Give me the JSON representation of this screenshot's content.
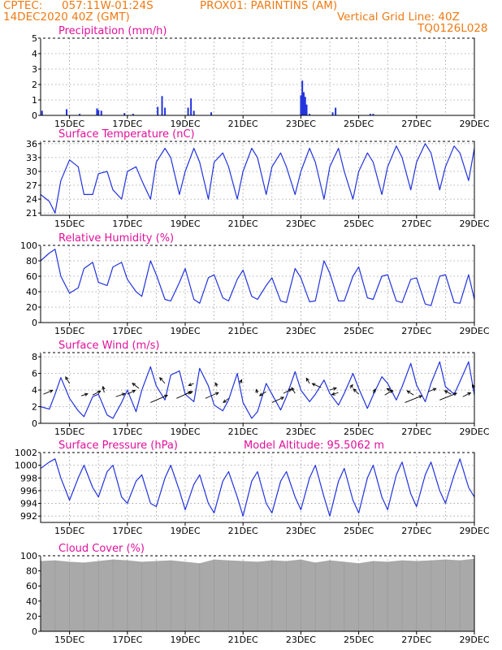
{
  "header": {
    "source": "CPTEC:",
    "coords": "057:11W-01:24S",
    "station": "PROX01: PARINTINS (AM)",
    "date": "14DEC2020 40Z (GMT)",
    "grid_note": "Vertical Grid Line: 40Z",
    "code": "TQ0126L028"
  },
  "colors": {
    "header": "#f07a14",
    "title": "#e0109a",
    "line": "#2233dd",
    "cloud": "#a9a9a9",
    "grid": "#9a9a9a"
  },
  "x_tick_labels": [
    "15DEC",
    "17DEC",
    "19DEC",
    "21DEC",
    "23DEC",
    "25DEC",
    "27DEC",
    "29DEC"
  ],
  "chart_data": [
    {
      "type": "bar",
      "title": "Precipitation (mm/h)",
      "ylim": [
        0,
        5
      ],
      "yticks": [
        0,
        1,
        2,
        3,
        4,
        5
      ],
      "x_range_days": [
        14.0,
        29.0
      ],
      "x_days": [
        14.05,
        14.9,
        15.35,
        15.95,
        16.0,
        16.1,
        16.9,
        17.2,
        18.05,
        18.2,
        18.3,
        19.1,
        19.2,
        19.3,
        19.9,
        23.0,
        23.05,
        23.1,
        23.15,
        23.2,
        23.3,
        24.1,
        24.2,
        25.4,
        25.5
      ],
      "values": [
        0.3,
        0.4,
        0.1,
        0.45,
        0.35,
        0.3,
        0.15,
        0.1,
        0.55,
        1.25,
        0.5,
        0.5,
        1.1,
        0.3,
        0.2,
        1.3,
        2.25,
        1.5,
        1.2,
        0.7,
        0.1,
        0.2,
        0.5,
        0.1,
        0.1
      ]
    },
    {
      "type": "line",
      "title": "Surface Temperature (nC)",
      "ylim": [
        20.5,
        36.5
      ],
      "yticks": [
        21,
        24,
        27,
        30,
        33,
        36
      ],
      "x_days": [
        14.0,
        14.3,
        14.5,
        14.7,
        15.0,
        15.3,
        15.5,
        15.8,
        16.0,
        16.3,
        16.5,
        16.8,
        17.0,
        17.3,
        17.5,
        17.8,
        18.0,
        18.3,
        18.5,
        18.8,
        19.0,
        19.3,
        19.5,
        19.8,
        20.0,
        20.3,
        20.5,
        20.8,
        21.0,
        21.3,
        21.5,
        21.8,
        22.0,
        22.3,
        22.5,
        22.8,
        23.0,
        23.3,
        23.5,
        23.8,
        24.0,
        24.3,
        24.5,
        24.8,
        25.0,
        25.3,
        25.5,
        25.8,
        26.0,
        26.3,
        26.5,
        26.8,
        27.0,
        27.3,
        27.5,
        27.8,
        28.0,
        28.3,
        28.5,
        28.8,
        29.0
      ],
      "values": [
        25,
        23.5,
        21,
        28,
        32.5,
        31,
        25,
        25,
        29.5,
        30,
        26,
        24,
        30,
        31,
        28,
        24,
        32,
        35,
        33,
        25,
        30,
        35,
        32,
        24,
        32,
        34,
        31,
        24,
        30,
        35,
        33,
        25,
        31,
        34,
        31,
        25,
        30,
        35,
        32,
        24,
        31,
        35,
        30,
        24,
        30,
        34,
        32,
        25,
        31,
        35.5,
        33,
        26,
        32,
        36,
        34,
        26,
        31,
        35.5,
        34,
        28,
        35
      ]
    },
    {
      "type": "line",
      "title": "Relative Humidity (%)",
      "ylim": [
        0,
        100
      ],
      "yticks": [
        0,
        20,
        40,
        60,
        80,
        100
      ],
      "x_days": [
        14.0,
        14.3,
        14.5,
        14.7,
        15.0,
        15.3,
        15.5,
        15.8,
        16.0,
        16.3,
        16.5,
        16.8,
        17.0,
        17.3,
        17.5,
        17.8,
        18.0,
        18.3,
        18.5,
        18.8,
        19.0,
        19.3,
        19.5,
        19.8,
        20.0,
        20.3,
        20.5,
        20.8,
        21.0,
        21.3,
        21.5,
        21.8,
        22.0,
        22.3,
        22.5,
        22.8,
        23.0,
        23.3,
        23.5,
        23.8,
        24.0,
        24.3,
        24.5,
        24.8,
        25.0,
        25.3,
        25.5,
        25.8,
        26.0,
        26.3,
        26.5,
        26.8,
        27.0,
        27.3,
        27.5,
        27.8,
        28.0,
        28.3,
        28.5,
        28.8,
        29.0
      ],
      "values": [
        80,
        90,
        95,
        60,
        38,
        45,
        70,
        78,
        52,
        48,
        72,
        78,
        56,
        40,
        34,
        80,
        62,
        30,
        28,
        52,
        70,
        30,
        25,
        58,
        62,
        32,
        28,
        56,
        68,
        34,
        30,
        48,
        58,
        28,
        26,
        70,
        58,
        27,
        28,
        80,
        64,
        28,
        28,
        60,
        72,
        32,
        30,
        60,
        62,
        28,
        26,
        56,
        58,
        24,
        22,
        60,
        62,
        26,
        25,
        62,
        30
      ]
    },
    {
      "type": "line",
      "title": "Surface Wind (m/s)",
      "ylim": [
        0,
        8.5
      ],
      "yticks": [
        0,
        2,
        4,
        6,
        8
      ],
      "x_days": [
        14.0,
        14.3,
        14.5,
        14.7,
        15.0,
        15.3,
        15.5,
        15.8,
        16.0,
        16.3,
        16.5,
        16.8,
        17.0,
        17.3,
        17.5,
        17.8,
        18.0,
        18.3,
        18.5,
        18.8,
        19.0,
        19.3,
        19.5,
        19.8,
        20.0,
        20.3,
        20.5,
        20.8,
        21.0,
        21.3,
        21.5,
        21.8,
        22.0,
        22.3,
        22.5,
        22.8,
        23.0,
        23.3,
        23.5,
        23.8,
        24.0,
        24.3,
        24.5,
        24.8,
        25.0,
        25.3,
        25.5,
        25.8,
        26.0,
        26.3,
        26.5,
        26.8,
        27.0,
        27.3,
        27.5,
        27.8,
        28.0,
        28.3,
        28.5,
        28.8,
        29.0
      ],
      "values": [
        2,
        1.7,
        3.5,
        5.5,
        3,
        1.5,
        0.8,
        3.2,
        3.5,
        1,
        0.6,
        2.5,
        4,
        1.4,
        4,
        6.8,
        4.5,
        2.8,
        5.8,
        6.3,
        3.5,
        2.6,
        6.6,
        4.5,
        2.2,
        1.5,
        2.8,
        6,
        2.5,
        0.6,
        1.4,
        4.8,
        3.5,
        1.6,
        3.2,
        6.2,
        4,
        2.6,
        3.5,
        5.2,
        3.6,
        2.2,
        3.6,
        6,
        4.2,
        1.8,
        3.4,
        5.6,
        4.8,
        2.8,
        4.4,
        7.2,
        4.6,
        2.6,
        4.8,
        7.4,
        4.4,
        3.5,
        5,
        7.4,
        3.4
      ],
      "arrows": [
        {
          "day": 14.1,
          "speed": 3.5,
          "u": 3.5,
          "v": 1.5
        },
        {
          "day": 15.0,
          "speed": 4.8,
          "u": -1.5,
          "v": 2.5
        },
        {
          "day": 15.4,
          "speed": 3.3,
          "u": 2.5,
          "v": 0.8
        },
        {
          "day": 15.8,
          "speed": 3.4,
          "u": 3,
          "v": 1.5
        },
        {
          "day": 16.2,
          "speed": 3.7,
          "u": -0.5,
          "v": 2.3
        },
        {
          "day": 16.6,
          "speed": 3.2,
          "u": 3.5,
          "v": 1.2
        },
        {
          "day": 17.0,
          "speed": 3.5,
          "u": 3,
          "v": 1.5
        },
        {
          "day": 17.4,
          "speed": 4.2,
          "u": -2.5,
          "v": 2
        },
        {
          "day": 17.8,
          "speed": 2.5,
          "u": 6.5,
          "v": 2.8
        },
        {
          "day": 18.3,
          "speed": 4.8,
          "u": -2,
          "v": 2.2
        },
        {
          "day": 18.7,
          "speed": 3,
          "u": 5.5,
          "v": 2.5
        },
        {
          "day": 19.0,
          "speed": 3.5,
          "u": 2.8,
          "v": 1
        },
        {
          "day": 19.3,
          "speed": 4.8,
          "u": -2,
          "v": -0.8
        },
        {
          "day": 19.7,
          "speed": 3,
          "u": 5,
          "v": 2.2
        },
        {
          "day": 20.1,
          "speed": 4.4,
          "u": -0.6,
          "v": 1.5
        },
        {
          "day": 20.5,
          "speed": 3,
          "u": -2,
          "v": -1.6
        },
        {
          "day": 20.9,
          "speed": 4.8,
          "u": 0.6,
          "v": 1.4
        },
        {
          "day": 21.5,
          "speed": 3.6,
          "u": -0.5,
          "v": 1.5
        },
        {
          "day": 21.8,
          "speed": 3.8,
          "u": -2.5,
          "v": -1.5
        },
        {
          "day": 22.0,
          "speed": 2.5,
          "u": 4.5,
          "v": 2
        },
        {
          "day": 22.4,
          "speed": 3.6,
          "u": 3,
          "v": 1.6
        },
        {
          "day": 22.8,
          "speed": 3.6,
          "u": -1.3,
          "v": 2.2
        },
        {
          "day": 23.3,
          "speed": 4.8,
          "u": -1.2,
          "v": 2
        },
        {
          "day": 23.7,
          "speed": 4.3,
          "u": -3.4,
          "v": 1.5
        },
        {
          "day": 24.0,
          "speed": 4,
          "u": 2.5,
          "v": 0.8
        },
        {
          "day": 24.3,
          "speed": 3.7,
          "u": -2.5,
          "v": -0.8
        },
        {
          "day": 24.7,
          "speed": 4.2,
          "u": 1,
          "v": 1.4
        },
        {
          "day": 25.0,
          "speed": 3.5,
          "u": -2,
          "v": 2
        },
        {
          "day": 25.5,
          "speed": 3.6,
          "u": 0.8,
          "v": 1.6
        },
        {
          "day": 25.9,
          "speed": 3.4,
          "u": 3,
          "v": 1.8
        },
        {
          "day": 26.2,
          "speed": 3.8,
          "u": -2.5,
          "v": 1.2
        },
        {
          "day": 26.6,
          "speed": 2.5,
          "u": 6.5,
          "v": 2.6
        },
        {
          "day": 26.9,
          "speed": 3.4,
          "u": -2.5,
          "v": 1.6
        },
        {
          "day": 27.4,
          "speed": 3.8,
          "u": 3,
          "v": 1.2
        },
        {
          "day": 27.8,
          "speed": 2.8,
          "u": 6.5,
          "v": 2.6
        },
        {
          "day": 28.2,
          "speed": 3.5,
          "u": -2.5,
          "v": 1.3
        },
        {
          "day": 28.6,
          "speed": 3.2,
          "u": 3,
          "v": 1.5
        },
        {
          "day": 29.0,
          "speed": 4.2,
          "u": -0.8,
          "v": 1.4
        }
      ]
    },
    {
      "type": "line",
      "title": "Surface Pressure (hPa)",
      "annotation": "Model Altitude: 95.5062 m",
      "ylim": [
        991,
        1002
      ],
      "yticks": [
        992,
        994,
        996,
        998,
        1000,
        1002
      ],
      "x_days": [
        14.0,
        14.3,
        14.5,
        14.7,
        15.0,
        15.3,
        15.5,
        15.8,
        16.0,
        16.3,
        16.5,
        16.8,
        17.0,
        17.3,
        17.5,
        17.8,
        18.0,
        18.3,
        18.5,
        18.8,
        19.0,
        19.3,
        19.5,
        19.8,
        20.0,
        20.3,
        20.5,
        20.8,
        21.0,
        21.3,
        21.5,
        21.8,
        22.0,
        22.3,
        22.5,
        22.8,
        23.0,
        23.3,
        23.5,
        23.8,
        24.0,
        24.3,
        24.5,
        24.8,
        25.0,
        25.3,
        25.5,
        25.8,
        26.0,
        26.3,
        26.5,
        26.8,
        27.0,
        27.3,
        27.5,
        27.8,
        28.0,
        28.3,
        28.5,
        28.8,
        29.0
      ],
      "values": [
        999.5,
        1000.5,
        1001,
        998,
        994.5,
        998,
        1000,
        996.5,
        995,
        999,
        1000,
        995,
        994,
        997.5,
        998.5,
        994,
        993.5,
        998,
        1000,
        996,
        993,
        997,
        998.5,
        994,
        992.5,
        997.5,
        999,
        995,
        992,
        997.5,
        999,
        994,
        992.5,
        997.5,
        999,
        995,
        993,
        998,
        1000,
        995,
        992,
        997.5,
        999.5,
        994.5,
        992.5,
        998,
        1000,
        995,
        993,
        998.5,
        1000.5,
        995.5,
        993.5,
        998.5,
        1000.5,
        996,
        994,
        998.5,
        1001,
        996.5,
        995
      ]
    },
    {
      "type": "bar",
      "title": "Cloud Cover (%)",
      "ylim": [
        0,
        100
      ],
      "yticks": [
        0,
        20,
        40,
        60,
        80,
        100
      ],
      "x_days": [
        14.0,
        14.5,
        15.0,
        15.5,
        16.0,
        16.5,
        17.0,
        17.5,
        18.0,
        18.5,
        19.0,
        19.5,
        20.0,
        20.5,
        21.0,
        21.5,
        22.0,
        22.5,
        23.0,
        23.5,
        24.0,
        24.5,
        25.0,
        25.5,
        26.0,
        26.5,
        27.0,
        27.5,
        28.0,
        28.5,
        29.0
      ],
      "values": [
        93,
        94,
        92,
        91,
        93,
        95,
        94,
        92,
        93,
        94,
        92,
        90,
        95,
        94,
        93,
        92,
        94,
        93,
        95,
        91,
        94,
        92,
        90,
        93,
        92,
        94,
        93,
        94,
        95,
        94,
        96
      ]
    }
  ]
}
